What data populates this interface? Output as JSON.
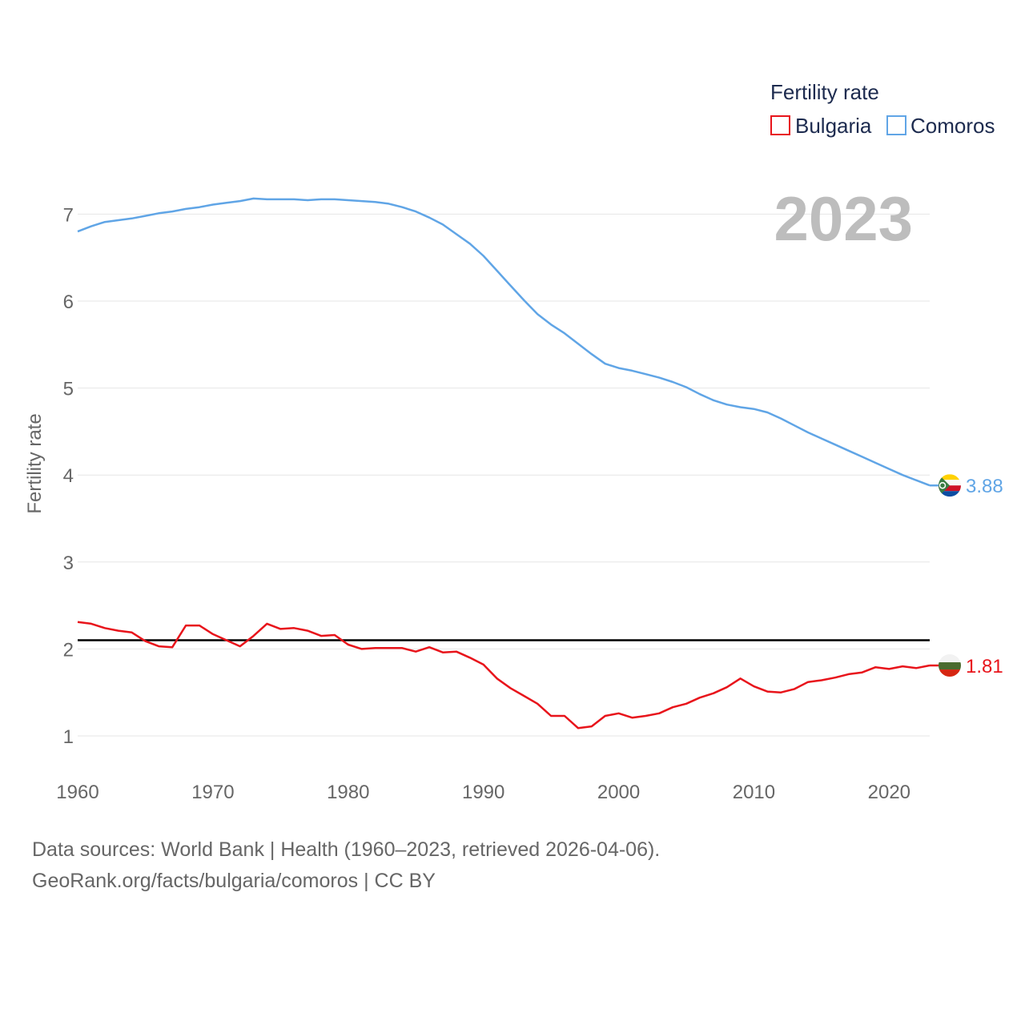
{
  "chart_data": {
    "type": "line",
    "title": "Fertility rate",
    "ylabel": "Fertility rate",
    "xlabel": "",
    "year_label": "2023",
    "xlim": [
      1960,
      2023
    ],
    "ylim": [
      0.6,
      7.4
    ],
    "x_ticks": [
      1960,
      1970,
      1980,
      1990,
      2000,
      2010,
      2020
    ],
    "y_ticks": [
      1,
      2,
      3,
      4,
      5,
      6,
      7
    ],
    "reference_line": {
      "value": 2.1,
      "color": "#000000"
    },
    "x": [
      1960,
      1961,
      1962,
      1963,
      1964,
      1965,
      1966,
      1967,
      1968,
      1969,
      1970,
      1971,
      1972,
      1973,
      1974,
      1975,
      1976,
      1977,
      1978,
      1979,
      1980,
      1981,
      1982,
      1983,
      1984,
      1985,
      1986,
      1987,
      1988,
      1989,
      1990,
      1991,
      1992,
      1993,
      1994,
      1995,
      1996,
      1997,
      1998,
      1999,
      2000,
      2001,
      2002,
      2003,
      2004,
      2005,
      2006,
      2007,
      2008,
      2009,
      2010,
      2011,
      2012,
      2013,
      2014,
      2015,
      2016,
      2017,
      2018,
      2019,
      2020,
      2021,
      2022,
      2023
    ],
    "series": [
      {
        "name": "Bulgaria",
        "color": "#e8141b",
        "end_label": "1.81",
        "values": [
          2.31,
          2.29,
          2.24,
          2.21,
          2.19,
          2.09,
          2.03,
          2.02,
          2.27,
          2.27,
          2.17,
          2.1,
          2.03,
          2.15,
          2.29,
          2.23,
          2.24,
          2.21,
          2.15,
          2.16,
          2.05,
          2.0,
          2.01,
          2.01,
          2.01,
          1.97,
          2.02,
          1.96,
          1.97,
          1.9,
          1.82,
          1.66,
          1.55,
          1.46,
          1.37,
          1.23,
          1.23,
          1.09,
          1.11,
          1.23,
          1.26,
          1.21,
          1.23,
          1.26,
          1.33,
          1.37,
          1.44,
          1.49,
          1.56,
          1.66,
          1.57,
          1.51,
          1.5,
          1.54,
          1.62,
          1.64,
          1.67,
          1.71,
          1.73,
          1.79,
          1.77,
          1.8,
          1.78,
          1.81
        ]
      },
      {
        "name": "Comoros",
        "color": "#60a5e6",
        "end_label": "3.88",
        "values": [
          6.8,
          6.86,
          6.91,
          6.93,
          6.95,
          6.98,
          7.01,
          7.03,
          7.06,
          7.08,
          7.11,
          7.13,
          7.15,
          7.18,
          7.17,
          7.17,
          7.17,
          7.16,
          7.17,
          7.17,
          7.16,
          7.15,
          7.14,
          7.12,
          7.08,
          7.03,
          6.96,
          6.88,
          6.77,
          6.66,
          6.52,
          6.35,
          6.18,
          6.01,
          5.85,
          5.73,
          5.63,
          5.51,
          5.39,
          5.28,
          5.23,
          5.2,
          5.16,
          5.12,
          5.07,
          5.01,
          4.93,
          4.86,
          4.81,
          4.78,
          4.76,
          4.72,
          4.65,
          4.57,
          4.49,
          4.42,
          4.35,
          4.28,
          4.21,
          4.14,
          4.07,
          4.0,
          3.94,
          3.88
        ]
      }
    ]
  },
  "footer": {
    "line1": "Data sources: World Bank | Health (1960–2023, retrieved 2026-04-06).",
    "line2": "GeoRank.org/facts/bulgaria/comoros | CC BY"
  }
}
